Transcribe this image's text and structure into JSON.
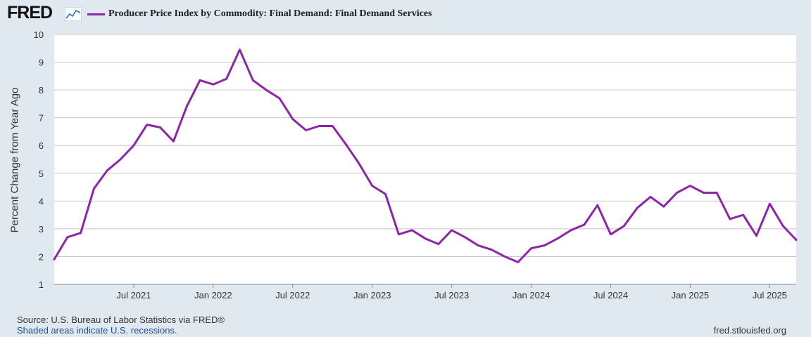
{
  "branding": {
    "logo_text": "FRED",
    "logo_icon": "trend-line-icon"
  },
  "legend": {
    "series_title": "Producer Price Index by Commodity: Final Demand: Final Demand Services",
    "color": "#8e24aa"
  },
  "footer": {
    "source": "Source: U.S. Bureau of Labor Statistics via FRED®",
    "recession_note": "Shaded areas indicate U.S. recessions.",
    "website": "fred.stlouisfed.org"
  },
  "chart_data": {
    "type": "line",
    "title": "Producer Price Index by Commodity: Final Demand: Final Demand Services",
    "xlabel": "",
    "ylabel": "Percent Change from Year Ago",
    "ylim": [
      1,
      10
    ],
    "yticks": [
      1,
      2,
      3,
      4,
      5,
      6,
      7,
      8,
      9,
      10
    ],
    "x_start": "2021-01",
    "x_end": "2025-09",
    "xticks": [
      {
        "label": "Jul 2021",
        "month_index": 6
      },
      {
        "label": "Jan 2022",
        "month_index": 12
      },
      {
        "label": "Jul 2022",
        "month_index": 18
      },
      {
        "label": "Jan 2023",
        "month_index": 24
      },
      {
        "label": "Jul 2023",
        "month_index": 30
      },
      {
        "label": "Jan 2024",
        "month_index": 36
      },
      {
        "label": "Jul 2024",
        "month_index": 42
      },
      {
        "label": "Jan 2025",
        "month_index": 48
      },
      {
        "label": "Jul 2025",
        "month_index": 54
      }
    ],
    "grid": true,
    "series": [
      {
        "name": "Producer Price Index by Commodity: Final Demand: Final Demand Services",
        "color": "#8e24aa",
        "x": [
          "2021-01",
          "2021-02",
          "2021-03",
          "2021-04",
          "2021-05",
          "2021-06",
          "2021-07",
          "2021-08",
          "2021-09",
          "2021-10",
          "2021-11",
          "2021-12",
          "2022-01",
          "2022-02",
          "2022-03",
          "2022-04",
          "2022-05",
          "2022-06",
          "2022-07",
          "2022-08",
          "2022-09",
          "2022-10",
          "2022-11",
          "2022-12",
          "2023-01",
          "2023-02",
          "2023-03",
          "2023-04",
          "2023-05",
          "2023-06",
          "2023-07",
          "2023-08",
          "2023-09",
          "2023-10",
          "2023-11",
          "2023-12",
          "2024-01",
          "2024-02",
          "2024-03",
          "2024-04",
          "2024-05",
          "2024-06",
          "2024-07",
          "2024-08",
          "2024-09",
          "2024-10",
          "2024-11",
          "2024-12",
          "2025-01",
          "2025-02",
          "2025-03",
          "2025-04",
          "2025-05",
          "2025-06",
          "2025-07",
          "2025-08",
          "2025-09"
        ],
        "values": [
          1.9,
          2.7,
          2.85,
          4.45,
          5.1,
          5.5,
          6.0,
          6.75,
          6.65,
          6.15,
          7.4,
          8.35,
          8.2,
          8.4,
          9.45,
          8.35,
          8.0,
          7.7,
          6.95,
          6.55,
          6.7,
          6.7,
          6.05,
          5.35,
          4.55,
          4.25,
          2.8,
          2.95,
          2.65,
          2.45,
          2.95,
          2.7,
          2.4,
          2.25,
          2.0,
          1.8,
          2.3,
          2.4,
          2.65,
          2.95,
          3.15,
          3.85,
          2.8,
          3.1,
          3.75,
          4.15,
          3.8,
          4.3,
          4.55,
          4.3,
          4.3,
          3.35,
          3.5,
          2.75,
          3.9,
          3.1,
          2.6
        ]
      }
    ]
  }
}
